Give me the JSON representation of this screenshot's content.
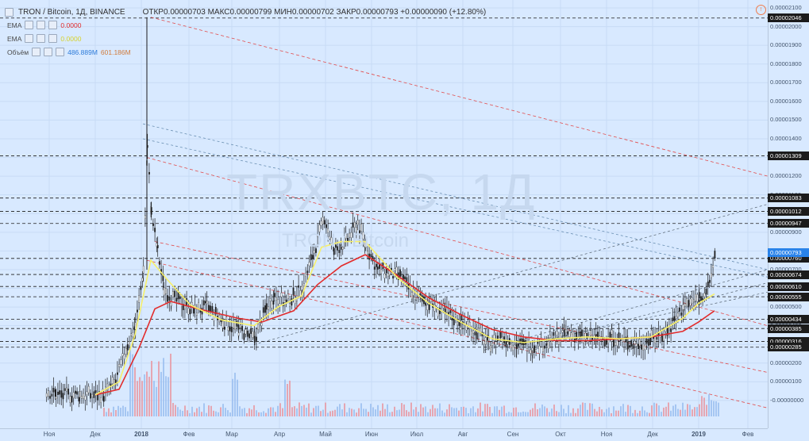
{
  "header": {
    "symbol": "TRON / Bitcoin, 1Д, BINANCE",
    "ohlc": "ОТКР0.00000703 МАКС0.00000799 МИН0.00000702 ЗАКР0.00000793 +0.00000090 (+12.80%)"
  },
  "indicators": [
    {
      "name": "EMA",
      "value": "0.0000"
    },
    {
      "name": "EMA",
      "value": "0.0000"
    },
    {
      "name": "Объём",
      "value1": "486.889M",
      "value2": "601.186M"
    }
  ],
  "watermark": {
    "ticker": "TRXBTC, 1Д",
    "pair": "TRON / Bitcoin"
  },
  "price_axis": {
    "labels": [
      "0.00002100",
      "0.00002000",
      "0.00001900",
      "0.00001800",
      "0.00001700",
      "0.00001600",
      "0.00001500",
      "0.00001400",
      "0.00001300",
      "0.00001200",
      "0.00001100",
      "0.00001000",
      "0.00000900",
      "0.00000800",
      "0.00000700",
      "0.00000600",
      "0.00000500",
      "0.00000400",
      "0.00000300",
      "0.00000200",
      "0.00000100",
      "-0.00000000"
    ],
    "badges": [
      "0.00002046",
      "0.00001309",
      "0.00001083",
      "0.00001012",
      "0.00000947",
      "0.00000760",
      "0.00000674",
      "0.00000610",
      "0.00000555",
      "0.00000434",
      "0.00000385",
      "0.00000316",
      "0.00000285"
    ],
    "last_price": "0.00000793"
  },
  "time_axis": [
    "Ноя",
    "Дек",
    "2018",
    "Фев",
    "Мар",
    "Апр",
    "Май",
    "Июн",
    "Июл",
    "Авг",
    "Сен",
    "Окт",
    "Ноя",
    "Дек",
    "2019",
    "Фев"
  ],
  "colors": {
    "background": "#d8e9ff",
    "ema_fast": "#f7f06a",
    "ema_slow": "#e22c2c",
    "resistance": "#1b1b1b",
    "trendline": "#e24a4a"
  },
  "chart_data": {
    "type": "line",
    "title": "TRON / Bitcoin, 1Д, BINANCE",
    "x": [
      "Ноя",
      "Дек",
      "2018",
      "Фев",
      "Мар",
      "Апр",
      "Май",
      "Июн",
      "Июл",
      "Авг",
      "Сен",
      "Окт",
      "Ноя",
      "Дек",
      "2019"
    ],
    "series": [
      {
        "name": "TRXBTC close",
        "values": [
          3e-07,
          4e-07,
          1e-05,
          4.2e-06,
          3.6e-06,
          5.8e-06,
          8.5e-06,
          7e-06,
          4.8e-06,
          3.5e-06,
          2.9e-06,
          3.4e-06,
          3.3e-06,
          4.5e-06,
          7.9e-06
        ]
      },
      {
        "name": "EMA",
        "values": [
          3e-07,
          3e-07,
          5.5e-06,
          5e-06,
          4.1e-06,
          4.5e-06,
          6.5e-06,
          7.5e-06,
          5.5e-06,
          3.8e-06,
          3.1e-06,
          3.2e-06,
          3.3e-06,
          3.7e-06,
          5.8e-06
        ]
      },
      {
        "name": "EMA",
        "values": [
          3e-07,
          3e-07,
          2.8e-06,
          4.9e-06,
          4.6e-06,
          4.5e-06,
          5.8e-06,
          6.9e-06,
          6e-06,
          4.4e-06,
          3.5e-06,
          3.3e-06,
          3.2e-06,
          3.4e-06,
          4.8e-06
        ]
      }
    ],
    "ylim": [
      -3e-07,
      2.1e-05
    ],
    "grid": true,
    "legend": "top-left"
  }
}
